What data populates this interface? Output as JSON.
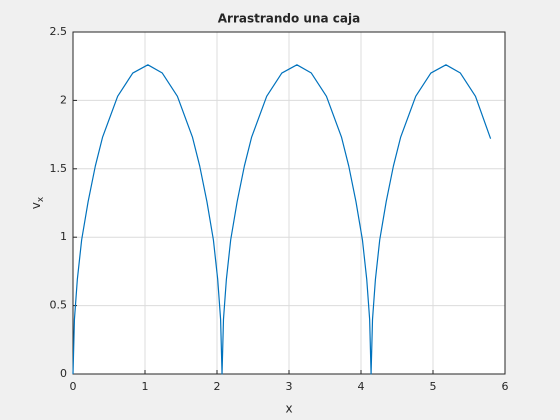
{
  "chart_data": {
    "type": "line",
    "title": "Arrastrando una caja",
    "xlabel": "x",
    "ylabel": {
      "text": "v",
      "subscript": "x"
    },
    "x": [
      0,
      0.02,
      0.06,
      0.12,
      0.21,
      0.31,
      0.41,
      0.62,
      0.83,
      1.04,
      1.24,
      1.45,
      1.66,
      1.76,
      1.86,
      1.95,
      2.01,
      2.05,
      2.07,
      2.09,
      2.13,
      2.19,
      2.28,
      2.38,
      2.48,
      2.69,
      2.9,
      3.11,
      3.31,
      3.52,
      3.73,
      3.83,
      3.93,
      4.02,
      4.08,
      4.12,
      4.14,
      4.16,
      4.2,
      4.26,
      4.35,
      4.45,
      4.55,
      4.76,
      4.97,
      5.18,
      5.38,
      5.59,
      5.8
    ],
    "series": [
      {
        "color": "#0072bd",
        "values": [
          0,
          0.4,
          0.69,
          0.98,
          1.26,
          1.52,
          1.73,
          2.03,
          2.2,
          2.26,
          2.2,
          2.03,
          1.73,
          1.52,
          1.26,
          0.98,
          0.69,
          0.4,
          0,
          0.4,
          0.69,
          0.98,
          1.26,
          1.52,
          1.73,
          2.03,
          2.2,
          2.26,
          2.2,
          2.03,
          1.73,
          1.52,
          1.26,
          0.98,
          0.69,
          0.4,
          0,
          0.4,
          0.69,
          0.98,
          1.26,
          1.52,
          1.73,
          2.03,
          2.2,
          2.26,
          2.2,
          2.03,
          1.72
        ]
      }
    ],
    "xlim": [
      0,
      6
    ],
    "xticks": [
      0,
      1,
      2,
      3,
      4,
      5,
      6
    ],
    "ylim": [
      0,
      2.5
    ],
    "yticks": [
      0,
      0.5,
      1,
      1.5,
      2,
      2.5
    ],
    "grid": true
  }
}
